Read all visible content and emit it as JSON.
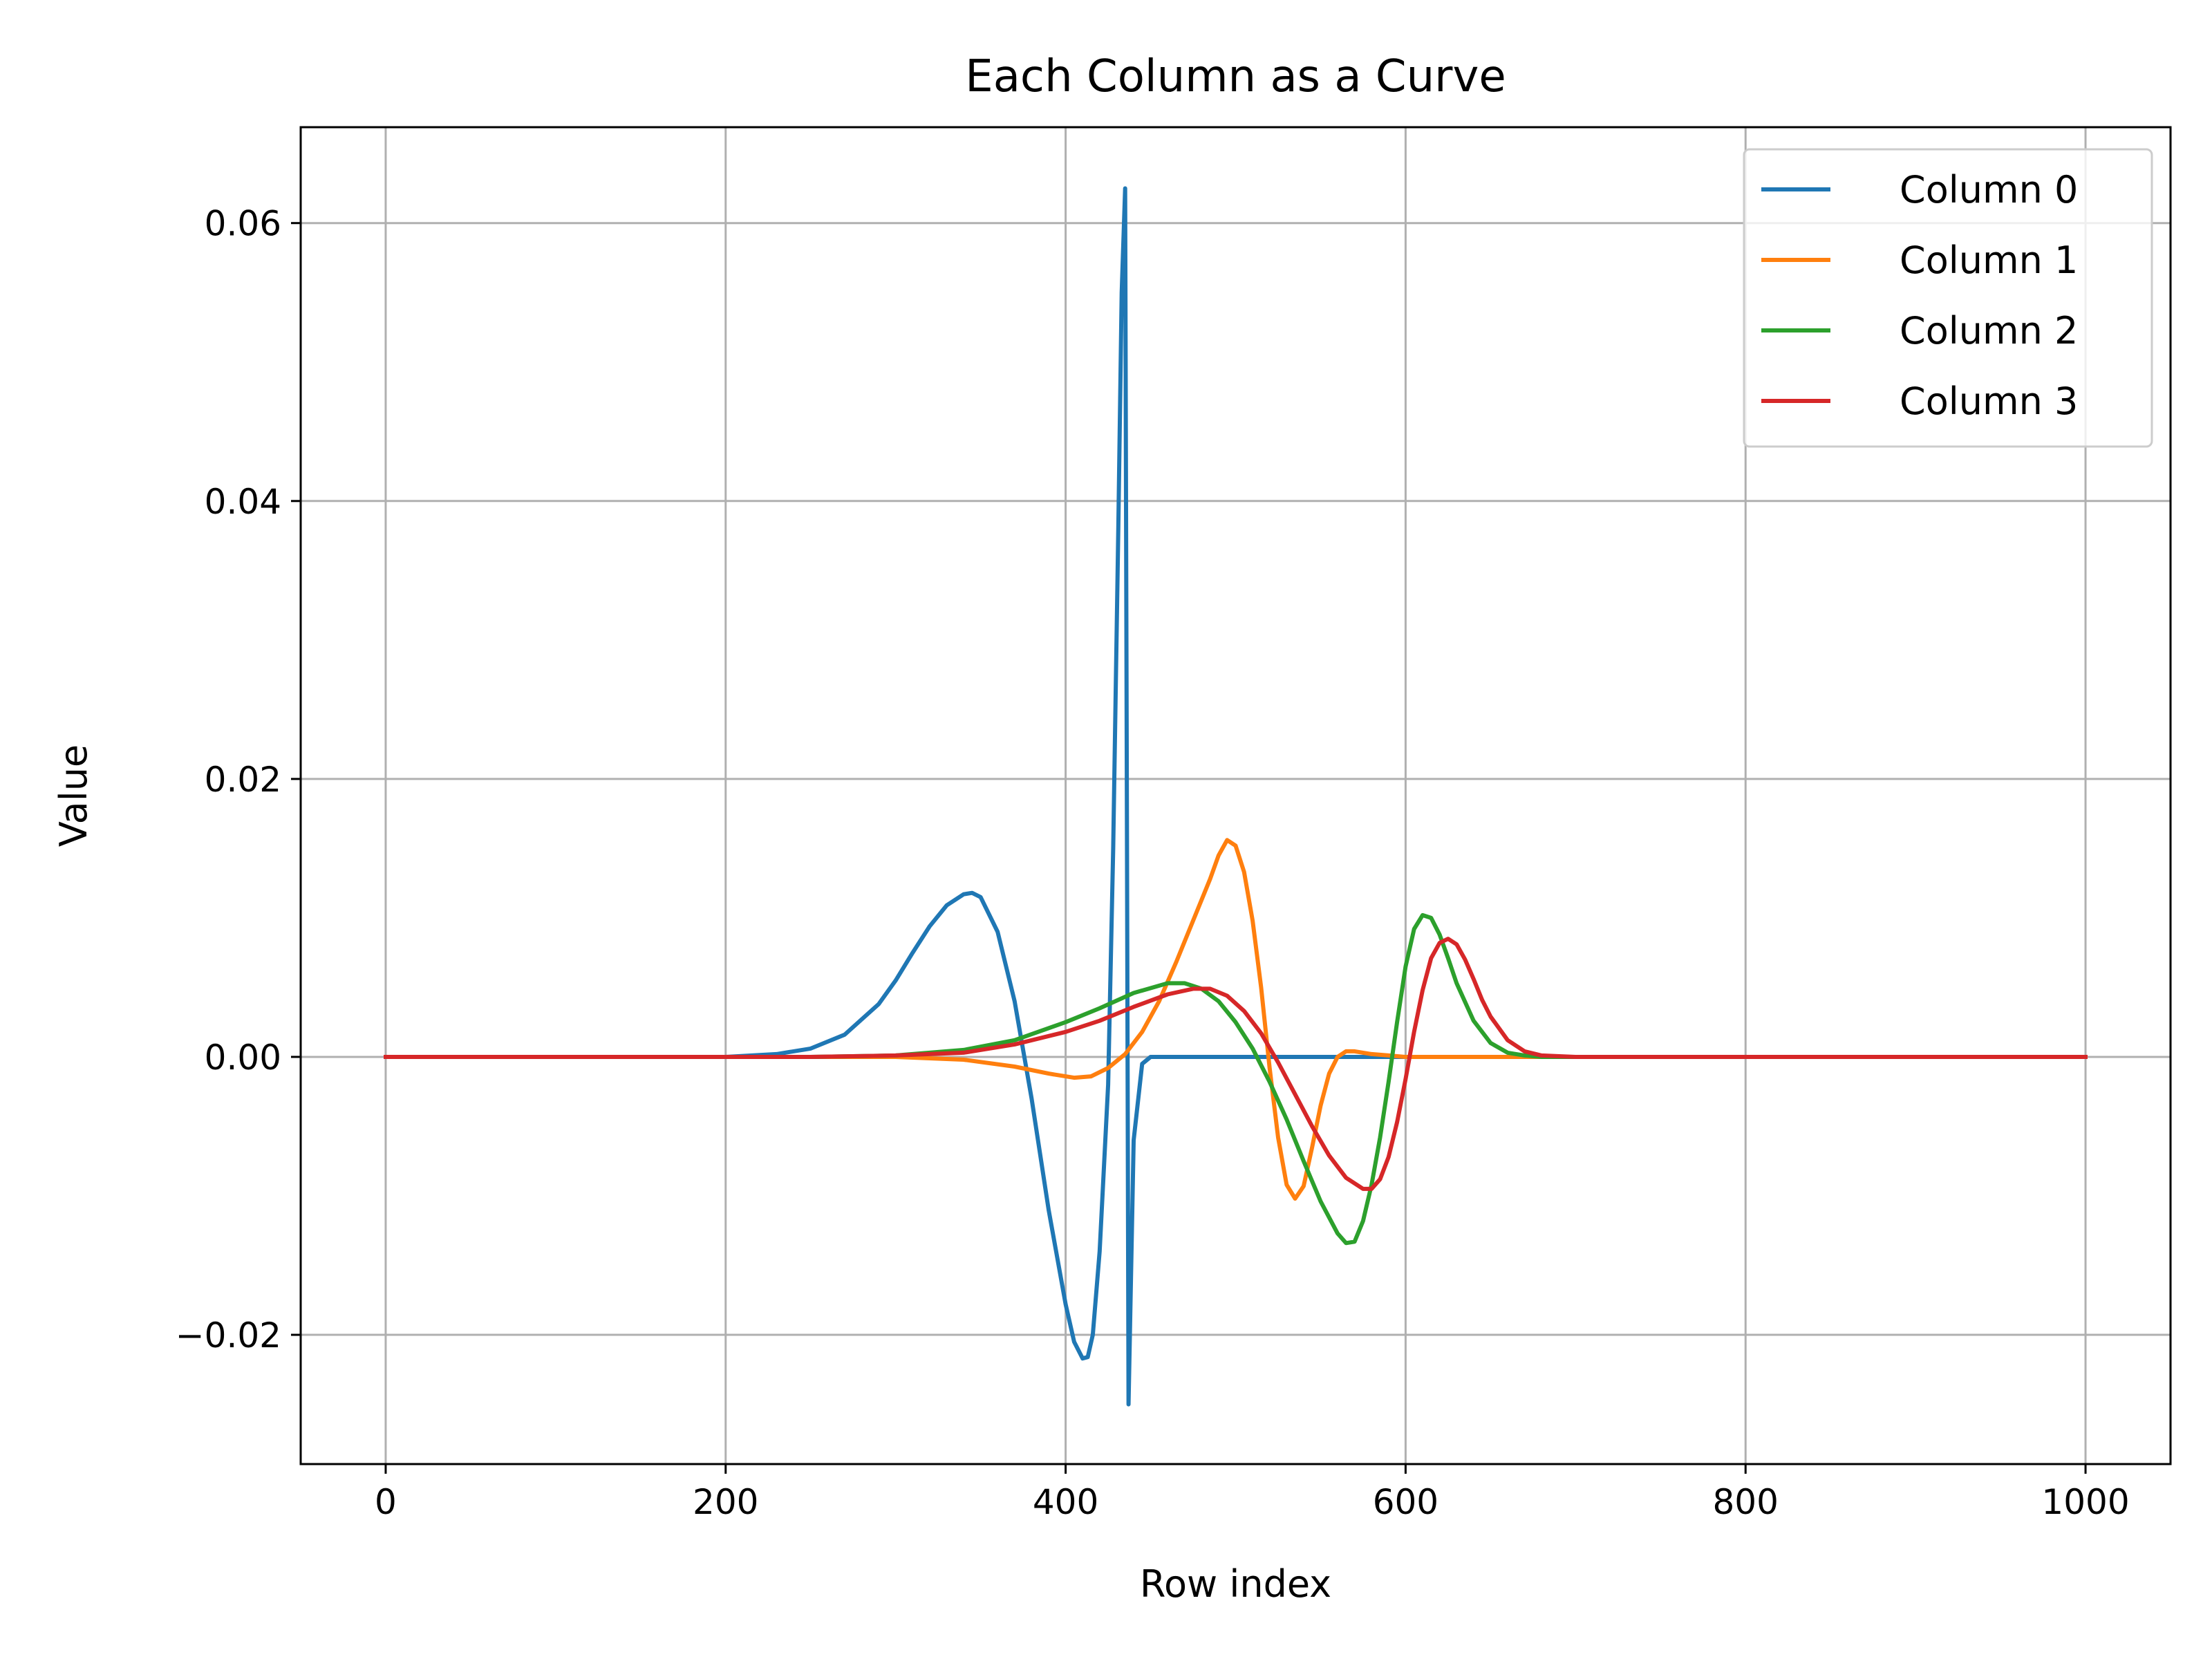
{
  "chart_data": {
    "type": "line",
    "title": "Each Column as a Curve",
    "xlabel": "Row index",
    "ylabel": "Value",
    "xlim": [
      -50,
      1050
    ],
    "ylim": [
      -0.0293,
      0.0669
    ],
    "xticks": [
      0,
      200,
      400,
      600,
      800,
      1000
    ],
    "xtick_labels": [
      "0",
      "200",
      "400",
      "600",
      "800",
      "1000"
    ],
    "yticks": [
      -0.02,
      0.0,
      0.02,
      0.04,
      0.06
    ],
    "ytick_labels": [
      "−0.02",
      "0.00",
      "0.02",
      "0.04",
      "0.06"
    ],
    "grid": true,
    "legend_position": "top-right",
    "series": [
      {
        "name": "Column 0",
        "color": "#1f77b4",
        "x": [
          0,
          200,
          230,
          250,
          270,
          290,
          300,
          310,
          320,
          330,
          340,
          345,
          350,
          360,
          370,
          380,
          390,
          400,
          405,
          410,
          413,
          416,
          420,
          425,
          428,
          431,
          433,
          435,
          436,
          437,
          440,
          445,
          450,
          460,
          500,
          600,
          700,
          800,
          900,
          1000
        ],
        "y": [
          0,
          0.0,
          0.0002,
          0.0006,
          0.0016,
          0.0038,
          0.0055,
          0.0075,
          0.0094,
          0.0109,
          0.0117,
          0.0118,
          0.0115,
          0.009,
          0.004,
          -0.003,
          -0.011,
          -0.0178,
          -0.0205,
          -0.0217,
          -0.0216,
          -0.02,
          -0.014,
          -0.002,
          0.015,
          0.038,
          0.055,
          0.0625,
          0.02,
          -0.025,
          -0.006,
          -0.0005,
          0.0,
          0.0,
          0.0,
          0.0,
          0.0,
          0.0,
          0.0,
          0.0
        ]
      },
      {
        "name": "Column 1",
        "color": "#ff7f0e",
        "x": [
          0,
          300,
          340,
          370,
          390,
          405,
          415,
          425,
          435,
          445,
          455,
          465,
          475,
          485,
          490,
          495,
          500,
          505,
          510,
          515,
          520,
          525,
          530,
          535,
          540,
          545,
          550,
          555,
          560,
          565,
          570,
          575,
          580,
          590,
          600,
          620,
          650,
          700,
          800,
          1000
        ],
        "y": [
          0,
          0.0,
          -0.0002,
          -0.0007,
          -0.0012,
          -0.0015,
          -0.0014,
          -0.0008,
          0.0002,
          0.0018,
          0.004,
          0.0068,
          0.0098,
          0.0128,
          0.0145,
          0.0156,
          0.0152,
          0.0133,
          0.0098,
          0.005,
          -0.0008,
          -0.0058,
          -0.0092,
          -0.0102,
          -0.0093,
          -0.0065,
          -0.0035,
          -0.0012,
          0.0,
          0.0004,
          0.0004,
          0.0003,
          0.0002,
          0.0001,
          0.0,
          0.0,
          0.0,
          0.0,
          0.0,
          0.0
        ]
      },
      {
        "name": "Column 2",
        "color": "#2ca02c",
        "x": [
          0,
          250,
          300,
          340,
          370,
          400,
          420,
          440,
          460,
          470,
          480,
          490,
          500,
          510,
          520,
          530,
          540,
          550,
          560,
          565,
          570,
          575,
          580,
          585,
          590,
          595,
          600,
          605,
          610,
          615,
          620,
          625,
          630,
          640,
          650,
          660,
          670,
          680,
          700,
          1000
        ],
        "y": [
          0,
          0.0,
          0.0001,
          0.0005,
          0.0012,
          0.0025,
          0.0035,
          0.0046,
          0.0053,
          0.0053,
          0.0049,
          0.004,
          0.0025,
          0.0006,
          -0.0018,
          -0.0045,
          -0.0075,
          -0.0104,
          -0.0127,
          -0.0134,
          -0.0133,
          -0.0118,
          -0.0092,
          -0.0058,
          -0.0018,
          0.0025,
          0.0065,
          0.0092,
          0.0102,
          0.01,
          0.0088,
          0.0071,
          0.0053,
          0.0026,
          0.001,
          0.0003,
          0.0001,
          0.0,
          0.0,
          0.0
        ]
      },
      {
        "name": "Column 3",
        "color": "#d62728",
        "x": [
          0,
          250,
          300,
          340,
          370,
          400,
          420,
          440,
          460,
          475,
          485,
          495,
          505,
          515,
          525,
          535,
          545,
          555,
          565,
          575,
          580,
          585,
          590,
          595,
          600,
          605,
          610,
          615,
          620,
          625,
          630,
          635,
          640,
          645,
          650,
          660,
          670,
          680,
          700,
          1000
        ],
        "y": [
          0,
          0.0,
          0.0001,
          0.0003,
          0.0009,
          0.0018,
          0.0026,
          0.0036,
          0.0045,
          0.0049,
          0.0049,
          0.0044,
          0.0033,
          0.0017,
          -0.0004,
          -0.0027,
          -0.005,
          -0.0071,
          -0.0087,
          -0.0095,
          -0.0095,
          -0.0088,
          -0.0072,
          -0.0047,
          -0.0016,
          0.0018,
          0.0048,
          0.0071,
          0.0082,
          0.0085,
          0.0081,
          0.007,
          0.0056,
          0.0041,
          0.0029,
          0.0012,
          0.0004,
          0.0001,
          0.0,
          0.0
        ]
      }
    ]
  }
}
